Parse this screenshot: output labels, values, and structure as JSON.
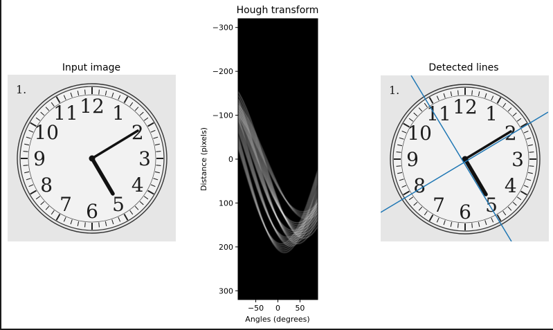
{
  "chart_data": [
    {
      "type": "image",
      "title": "Input image",
      "content": {
        "corner_label": "1.",
        "numerals": [
          "12",
          "1",
          "2",
          "3",
          "4",
          "5",
          "6",
          "7",
          "8",
          "9",
          "10",
          "11"
        ]
      }
    },
    {
      "type": "heatmap",
      "title": "Hough transform",
      "xlabel": "Angles (degrees)",
      "ylabel": "Distance (pixels)",
      "xlim": [
        -90,
        90
      ],
      "ylim": [
        320,
        -320
      ],
      "xticks": [
        -50,
        0,
        50
      ],
      "xtick_labels": [
        "−50",
        "0",
        "50"
      ],
      "yticks": [
        -300,
        -200,
        -100,
        0,
        100,
        200,
        300
      ],
      "ytick_labels": [
        "−300",
        "−200",
        "−100",
        "0",
        "100",
        "200",
        "300"
      ],
      "colormap": "gray",
      "background": "#000000"
    },
    {
      "type": "image",
      "title": "Detected lines",
      "content": {
        "corner_label": "1.",
        "numerals": [
          "12",
          "1",
          "2",
          "3",
          "4",
          "5",
          "6",
          "7",
          "8",
          "9",
          "10",
          "11"
        ],
        "line_color": "#1f77b4",
        "detected_line_count": 2
      }
    }
  ]
}
